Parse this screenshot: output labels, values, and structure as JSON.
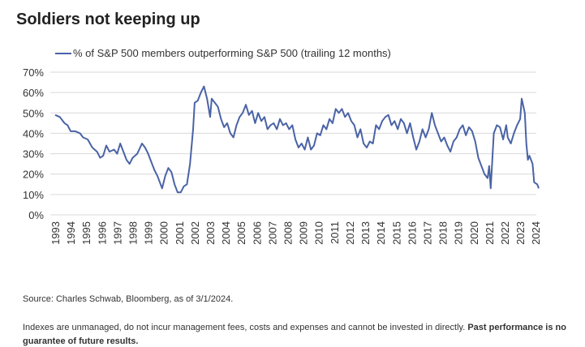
{
  "chart_data": {
    "type": "line",
    "title": "Soldiers not keeping up",
    "source": "Source: Charles Schwab, Bloomberg, as of 3/1/2024.",
    "disclaimer": "Indexes are unmanaged, do not incur management fees, costs and expenses and cannot be invested in directly.",
    "disclaimer_bold": "Past performance is no guarantee of future results.",
    "grid": true,
    "xlim": [
      1993,
      2024.2
    ],
    "xticks": [
      1993,
      1994,
      1995,
      1996,
      1997,
      1998,
      1999,
      2000,
      2001,
      2002,
      2003,
      2004,
      2005,
      2006,
      2007,
      2008,
      2009,
      2010,
      2011,
      2012,
      2013,
      2014,
      2015,
      2016,
      2017,
      2018,
      2019,
      2020,
      2021,
      2022,
      2023,
      2024
    ],
    "ylim": [
      0,
      70
    ],
    "yticks": [
      {
        "value": 0,
        "label": "0%"
      },
      {
        "value": 10,
        "label": "10%"
      },
      {
        "value": 20,
        "label": "20%"
      },
      {
        "value": 30,
        "label": "30%"
      },
      {
        "value": 40,
        "label": "40%"
      },
      {
        "value": 50,
        "label": "50%"
      },
      {
        "value": 60,
        "label": "60%"
      },
      {
        "value": 70,
        "label": "70%"
      }
    ],
    "x": [
      1993.0,
      1993.3,
      1993.6,
      1993.8,
      1994.0,
      1994.3,
      1994.6,
      1994.8,
      1995.1,
      1995.4,
      1995.7,
      1995.9,
      1996.1,
      1996.3,
      1996.5,
      1996.8,
      1997.0,
      1997.2,
      1997.4,
      1997.6,
      1997.8,
      1998.0,
      1998.3,
      1998.6,
      1998.8,
      1999.0,
      1999.2,
      1999.4,
      1999.6,
      1999.9,
      2000.1,
      2000.3,
      2000.5,
      2000.7,
      2000.9,
      2001.1,
      2001.3,
      2001.5,
      2001.7,
      2001.9,
      2002.0,
      2002.2,
      2002.4,
      2002.6,
      2002.8,
      2003.0,
      2003.1,
      2003.3,
      2003.5,
      2003.7,
      2003.9,
      2004.1,
      2004.3,
      2004.5,
      2004.7,
      2004.9,
      2005.1,
      2005.3,
      2005.5,
      2005.7,
      2005.9,
      2006.1,
      2006.3,
      2006.5,
      2006.7,
      2006.9,
      2007.1,
      2007.3,
      2007.5,
      2007.7,
      2007.9,
      2008.1,
      2008.3,
      2008.5,
      2008.7,
      2008.9,
      2009.1,
      2009.3,
      2009.5,
      2009.7,
      2009.9,
      2010.1,
      2010.3,
      2010.5,
      2010.7,
      2010.9,
      2011.1,
      2011.3,
      2011.5,
      2011.7,
      2011.9,
      2012.1,
      2012.3,
      2012.5,
      2012.7,
      2012.9,
      2013.1,
      2013.3,
      2013.5,
      2013.7,
      2013.9,
      2014.1,
      2014.3,
      2014.5,
      2014.7,
      2014.9,
      2015.1,
      2015.3,
      2015.5,
      2015.7,
      2015.9,
      2016.1,
      2016.3,
      2016.5,
      2016.7,
      2016.9,
      2017.1,
      2017.3,
      2017.5,
      2017.7,
      2017.9,
      2018.1,
      2018.3,
      2018.5,
      2018.7,
      2018.9,
      2019.1,
      2019.3,
      2019.5,
      2019.7,
      2019.9,
      2020.1,
      2020.3,
      2020.5,
      2020.7,
      2020.9,
      2021.0,
      2021.1,
      2021.3,
      2021.5,
      2021.7,
      2021.9,
      2022.1,
      2022.2,
      2022.4,
      2022.6,
      2022.8,
      2023.0,
      2023.1,
      2023.3,
      2023.4,
      2023.5,
      2023.6,
      2023.8,
      2023.9,
      2024.1,
      2024.2
    ],
    "series": [
      {
        "name": "% of S&P 500 members outperforming S&P 500 (trailing 12 months)",
        "color": "#4a63a6",
        "values": [
          49,
          48,
          45,
          44,
          41,
          41,
          40,
          38,
          37,
          33,
          31,
          28,
          29,
          34,
          31,
          32,
          30,
          35,
          31,
          27,
          25,
          28,
          30,
          35,
          33,
          30,
          26,
          22,
          19,
          13,
          19,
          23,
          21,
          15,
          11,
          11,
          14,
          15,
          25,
          42,
          55,
          56,
          60,
          63,
          57,
          48,
          57,
          55,
          53,
          47,
          43,
          45,
          40,
          38,
          44,
          48,
          50,
          54,
          49,
          51,
          45,
          50,
          46,
          48,
          42,
          44,
          45,
          42,
          47,
          44,
          45,
          42,
          44,
          37,
          33,
          35,
          32,
          38,
          32,
          34,
          40,
          39,
          44,
          42,
          47,
          45,
          52,
          50,
          52,
          48,
          50,
          46,
          44,
          38,
          42,
          35,
          33,
          36,
          35,
          44,
          42,
          46,
          48,
          49,
          44,
          46,
          42,
          47,
          45,
          40,
          45,
          38,
          32,
          36,
          42,
          38,
          42,
          50,
          44,
          40,
          36,
          38,
          34,
          31,
          36,
          38,
          42,
          44,
          39,
          43,
          41,
          36,
          28,
          24,
          20,
          18,
          24,
          13,
          40,
          44,
          43,
          37,
          44,
          38,
          35,
          40,
          44,
          47,
          57,
          50,
          35,
          27,
          29,
          25,
          16,
          15,
          13
        ]
      }
    ]
  }
}
